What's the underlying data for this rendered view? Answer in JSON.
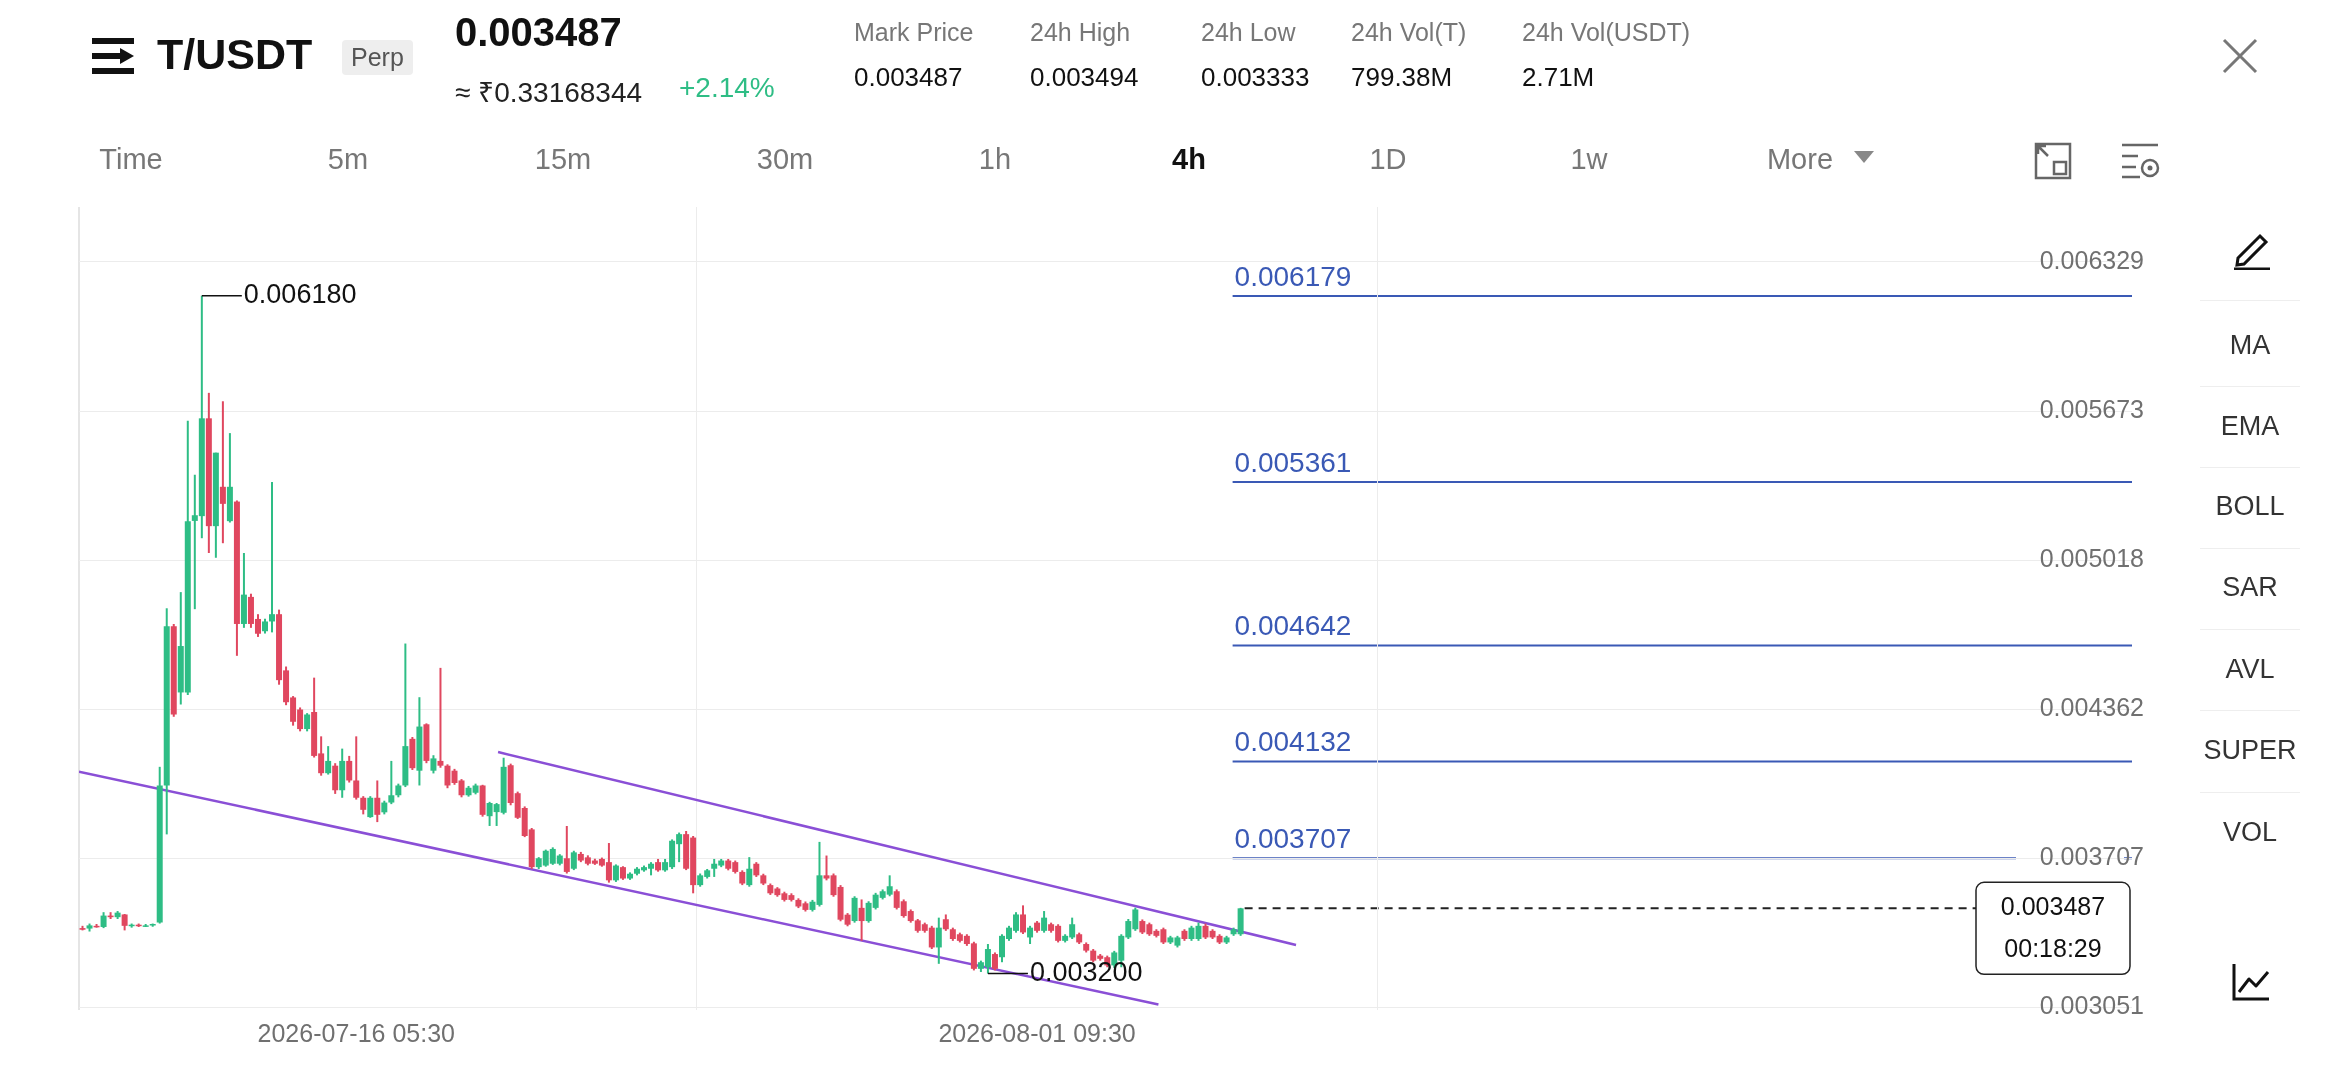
{
  "chart_data": {
    "type": "candlestick",
    "title": "T/USDT",
    "subtitle": "0.003487",
    "x": [
      "2026-07-09T17:30",
      "2026-07-09T21:30",
      "2026-07-10T01:30",
      "2026-07-10T05:30",
      "2026-07-10T09:30",
      "2026-07-10T13:30",
      "2026-07-10T17:30",
      "2026-07-10T21:30",
      "2026-07-11T01:30",
      "2026-07-11T05:30",
      "2026-07-11T09:30",
      "2026-07-11T13:30",
      "2026-07-11T17:30",
      "2026-07-11T21:30",
      "2026-07-12T01:30",
      "2026-07-12T05:30",
      "2026-07-12T09:30",
      "2026-07-12T13:30",
      "2026-07-12T17:30",
      "2026-07-12T21:30",
      "2026-07-13T01:30",
      "2026-07-13T05:30",
      "2026-07-13T09:30",
      "2026-07-13T13:30",
      "2026-07-13T17:30",
      "2026-07-13T21:30",
      "2026-07-14T01:30",
      "2026-07-14T05:30",
      "2026-07-14T09:30",
      "2026-07-14T13:30",
      "2026-07-14T17:30",
      "2026-07-14T21:30",
      "2026-07-15T01:30",
      "2026-07-15T05:30",
      "2026-07-15T09:30",
      "2026-07-15T13:30",
      "2026-07-15T17:30",
      "2026-07-15T21:30",
      "2026-07-16T01:30",
      "2026-07-16T05:30",
      "2026-07-16T09:30",
      "2026-07-16T13:30",
      "2026-07-16T17:30",
      "2026-07-16T21:30",
      "2026-07-17T01:30",
      "2026-07-17T05:30",
      "2026-07-17T09:30",
      "2026-07-17T13:30",
      "2026-07-17T17:30",
      "2026-07-17T21:30",
      "2026-07-18T01:30",
      "2026-07-18T05:30",
      "2026-07-18T09:30",
      "2026-07-18T13:30",
      "2026-07-18T17:30",
      "2026-07-18T21:30",
      "2026-07-19T01:30",
      "2026-07-19T05:30",
      "2026-07-19T09:30",
      "2026-07-19T13:30",
      "2026-07-19T17:30",
      "2026-07-19T21:30",
      "2026-07-20T01:30",
      "2026-07-20T05:30",
      "2026-07-20T09:30",
      "2026-07-20T13:30",
      "2026-07-20T17:30",
      "2026-07-20T21:30",
      "2026-07-21T01:30",
      "2026-07-21T05:30",
      "2026-07-21T09:30",
      "2026-07-21T13:30",
      "2026-07-21T17:30",
      "2026-07-21T21:30",
      "2026-07-22T01:30",
      "2026-07-22T05:30",
      "2026-07-22T09:30",
      "2026-07-22T13:30",
      "2026-07-22T17:30",
      "2026-07-22T21:30",
      "2026-07-23T01:30",
      "2026-07-23T05:30",
      "2026-07-23T09:30",
      "2026-07-23T13:30",
      "2026-07-23T17:30",
      "2026-07-23T21:30",
      "2026-07-24T01:30",
      "2026-07-24T05:30",
      "2026-07-24T09:30",
      "2026-07-24T13:30",
      "2026-07-24T17:30",
      "2026-07-24T21:30",
      "2026-07-25T01:30",
      "2026-07-25T05:30",
      "2026-07-25T09:30",
      "2026-07-25T13:30",
      "2026-07-25T17:30",
      "2026-07-25T21:30",
      "2026-07-26T01:30",
      "2026-07-26T05:30",
      "2026-07-26T09:30",
      "2026-07-26T13:30",
      "2026-07-26T17:30",
      "2026-07-26T21:30",
      "2026-07-27T01:30",
      "2026-07-27T05:30",
      "2026-07-27T09:30",
      "2026-07-27T13:30",
      "2026-07-27T17:30",
      "2026-07-27T21:30",
      "2026-07-28T01:30",
      "2026-07-28T05:30",
      "2026-07-28T09:30",
      "2026-07-28T13:30",
      "2026-07-28T17:30",
      "2026-07-28T21:30",
      "2026-07-29T01:30",
      "2026-07-29T05:30",
      "2026-07-29T09:30",
      "2026-07-29T13:30",
      "2026-07-29T17:30",
      "2026-07-29T21:30",
      "2026-07-30T01:30",
      "2026-07-30T05:30",
      "2026-07-30T09:30",
      "2026-07-30T13:30",
      "2026-07-30T17:30",
      "2026-07-30T21:30",
      "2026-07-31T01:30",
      "2026-07-31T05:30",
      "2026-07-31T09:30",
      "2026-07-31T13:30",
      "2026-07-31T17:30",
      "2026-07-31T21:30",
      "2026-08-01T01:30",
      "2026-08-01T05:30",
      "2026-08-01T09:30",
      "2026-08-01T13:30",
      "2026-08-01T17:30",
      "2026-08-01T21:30",
      "2026-08-02T01:30",
      "2026-08-02T05:30",
      "2026-08-02T09:30",
      "2026-08-02T13:30",
      "2026-08-02T17:30",
      "2026-08-02T21:30",
      "2026-08-03T01:30",
      "2026-08-03T05:30",
      "2026-08-03T09:30",
      "2026-08-03T13:30",
      "2026-08-03T17:30",
      "2026-08-03T21:30",
      "2026-08-04T01:30",
      "2026-08-04T05:30",
      "2026-08-04T09:30",
      "2026-08-04T13:30",
      "2026-08-04T17:30",
      "2026-08-04T21:30",
      "2026-08-05T01:30",
      "2026-08-05T05:30",
      "2026-08-05T09:30",
      "2026-08-05T13:30",
      "2026-08-05T17:30",
      "2026-08-05T21:30",
      "2026-08-06T01:30",
      "2026-08-06T05:30"
    ],
    "ohlc": [
      [
        0.0034,
        0.00341,
        0.00339,
        0.003393
      ],
      [
        0.003398,
        0.00342,
        0.003385,
        0.003412
      ],
      [
        0.00341,
        0.003418,
        0.003402,
        0.003405
      ],
      [
        0.003405,
        0.00347,
        0.0034,
        0.003455
      ],
      [
        0.003455,
        0.00347,
        0.00344,
        0.003448
      ],
      [
        0.003448,
        0.003475,
        0.00344,
        0.003468
      ],
      [
        0.00346,
        0.003462,
        0.00339,
        0.00341
      ],
      [
        0.00341,
        0.00342,
        0.003402,
        0.003415
      ],
      [
        0.003415,
        0.00342,
        0.003405,
        0.00341
      ],
      [
        0.00341,
        0.003418,
        0.003405,
        0.003412
      ],
      [
        0.003412,
        0.00342,
        0.003406,
        0.003418
      ],
      [
        0.003425,
        0.004109,
        0.00342,
        0.004027
      ],
      [
        0.004027,
        0.004806,
        0.003812,
        0.004727
      ],
      [
        0.004727,
        0.004737,
        0.004329,
        0.004339
      ],
      [
        0.004436,
        0.004877,
        0.004383,
        0.00464
      ],
      [
        0.004436,
        0.00563,
        0.004425,
        0.005189
      ],
      [
        0.00519,
        0.005393,
        0.004802,
        0.005215
      ],
      [
        0.005211,
        0.00618,
        0.005114,
        0.005641
      ],
      [
        0.005641,
        0.005753,
        0.005049,
        0.005167
      ],
      [
        0.005167,
        0.00549,
        0.005028,
        0.00549
      ],
      [
        0.00534,
        0.005716,
        0.005092,
        0.005265
      ],
      [
        0.005189,
        0.005576,
        0.005183,
        0.00534
      ],
      [
        0.005275,
        0.00528,
        0.004597,
        0.004737
      ],
      [
        0.004737,
        0.005049,
        0.00472,
        0.004866
      ],
      [
        0.004856,
        0.00487,
        0.00472,
        0.004737
      ],
      [
        0.004759,
        0.00478,
        0.00468,
        0.004694
      ],
      [
        0.004705,
        0.00476,
        0.004695,
        0.004748
      ],
      [
        0.004748,
        0.005361,
        0.0047,
        0.00478
      ],
      [
        0.00478,
        0.0048,
        0.00447,
        0.00449
      ],
      [
        0.004533,
        0.00455,
        0.00438,
        0.004393
      ],
      [
        0.004414,
        0.00442,
        0.00429,
        0.004307
      ],
      [
        0.004361,
        0.00437,
        0.004265,
        0.004275
      ],
      [
        0.004275,
        0.004345,
        0.004265,
        0.004339
      ],
      [
        0.00435,
        0.004501,
        0.00415,
        0.004157
      ],
      [
        0.004168,
        0.004243,
        0.00407,
        0.004081
      ],
      [
        0.004081,
        0.0042,
        0.004075,
        0.004135
      ],
      [
        0.004114,
        0.004125,
        0.00399,
        0.004006
      ],
      [
        0.004006,
        0.004189,
        0.003973,
        0.004135
      ],
      [
        0.004135,
        0.004157,
        0.00404,
        0.004049
      ],
      [
        0.004049,
        0.004243,
        0.003965,
        0.003973
      ],
      [
        0.003973,
        0.00398,
        0.0039,
        0.00392
      ],
      [
        0.003888,
        0.00398,
        0.003885,
        0.003973
      ],
      [
        0.003973,
        0.004049,
        0.003866,
        0.003898
      ],
      [
        0.003909,
        0.00396,
        0.0039,
        0.003952
      ],
      [
        0.003952,
        0.004135,
        0.003945,
        0.003984
      ],
      [
        0.003984,
        0.004035,
        0.003975,
        0.004027
      ],
      [
        0.004027,
        0.004651,
        0.00402,
        0.0042
      ],
      [
        0.004232,
        0.00424,
        0.004095,
        0.004103
      ],
      [
        0.004092,
        0.004415,
        0.004027,
        0.004286
      ],
      [
        0.004296,
        0.0043,
        0.004125,
        0.004135
      ],
      [
        0.004092,
        0.00416,
        0.00408,
        0.004146
      ],
      [
        0.004135,
        0.004544,
        0.004105,
        0.004114
      ],
      [
        0.004114,
        0.00412,
        0.004015,
        0.004027
      ],
      [
        0.004092,
        0.0041,
        0.00403,
        0.004038
      ],
      [
        0.004049,
        0.004055,
        0.003975,
        0.003984
      ],
      [
        0.003984,
        0.004025,
        0.003978,
        0.004017
      ],
      [
        0.003995,
        0.004035,
        0.003988,
        0.004027
      ],
      [
        0.004027,
        0.00403,
        0.00389,
        0.003898
      ],
      [
        0.003892,
        0.003955,
        0.003849,
        0.00395
      ],
      [
        0.00391,
        0.00395,
        0.003849,
        0.003945
      ],
      [
        0.003907,
        0.004149,
        0.0039,
        0.004109
      ],
      [
        0.004116,
        0.004123,
        0.00394,
        0.00395
      ],
      [
        0.003993,
        0.004,
        0.00388,
        0.003885
      ],
      [
        0.003928,
        0.003935,
        0.0038,
        0.003805
      ],
      [
        0.003834,
        0.00384,
        0.00366,
        0.003668
      ],
      [
        0.003668,
        0.003712,
        0.00366,
        0.003707
      ],
      [
        0.003675,
        0.003745,
        0.00367,
        0.00374
      ],
      [
        0.003683,
        0.003755,
        0.003678,
        0.003748
      ],
      [
        0.003683,
        0.003725,
        0.003676,
        0.003719
      ],
      [
        0.003707,
        0.003849,
        0.00364,
        0.003647
      ],
      [
        0.003661,
        0.00374,
        0.003655,
        0.003733
      ],
      [
        0.003726,
        0.003735,
        0.00369,
        0.003697
      ],
      [
        0.003711,
        0.00372,
        0.003676,
        0.003683
      ],
      [
        0.003697,
        0.003705,
        0.003678,
        0.003683
      ],
      [
        0.003704,
        0.00371,
        0.00367,
        0.003675
      ],
      [
        0.00369,
        0.003774,
        0.0036,
        0.00361
      ],
      [
        0.00361,
        0.00368,
        0.003603,
        0.003675
      ],
      [
        0.003668,
        0.003672,
        0.003612,
        0.003618
      ],
      [
        0.003618,
        0.003645,
        0.003612,
        0.003639
      ],
      [
        0.003639,
        0.003668,
        0.003632,
        0.003661
      ],
      [
        0.003654,
        0.003675,
        0.003648,
        0.003668
      ],
      [
        0.003661,
        0.00369,
        0.003632,
        0.003683
      ],
      [
        0.00369,
        0.003704,
        0.003648,
        0.003654
      ],
      [
        0.003654,
        0.003704,
        0.003648,
        0.00369
      ],
      [
        0.003668,
        0.00379,
        0.00366,
        0.003784
      ],
      [
        0.003769,
        0.00382,
        0.00369,
        0.003813
      ],
      [
        0.003813,
        0.003827,
        0.003655,
        0.003661
      ],
      [
        0.003798,
        0.003805,
        0.003553,
        0.003589
      ],
      [
        0.003589,
        0.00364,
        0.003582,
        0.003632
      ],
      [
        0.003625,
        0.00366,
        0.003618,
        0.003654
      ],
      [
        0.003661,
        0.003704,
        0.003625,
        0.003683
      ],
      [
        0.003675,
        0.003704,
        0.003668,
        0.003697
      ],
      [
        0.003697,
        0.003704,
        0.003654,
        0.003661
      ],
      [
        0.00369,
        0.003697,
        0.00364,
        0.003647
      ],
      [
        0.003647,
        0.003654,
        0.003589,
        0.003596
      ],
      [
        0.003589,
        0.003712,
        0.003582,
        0.003661
      ],
      [
        0.003683,
        0.00369,
        0.003625,
        0.003632
      ],
      [
        0.003632,
        0.003639,
        0.003589,
        0.003596
      ],
      [
        0.003589,
        0.003596,
        0.003546,
        0.003553
      ],
      [
        0.003574,
        0.00358,
        0.003538,
        0.003545
      ],
      [
        0.003553,
        0.00356,
        0.003517,
        0.003524
      ],
      [
        0.003545,
        0.003553,
        0.003517,
        0.003524
      ],
      [
        0.003524,
        0.003531,
        0.003488,
        0.003495
      ],
      [
        0.003509,
        0.003517,
        0.003473,
        0.00348
      ],
      [
        0.00348,
        0.003524,
        0.003473,
        0.003516
      ],
      [
        0.003502,
        0.003779,
        0.003495,
        0.003632
      ],
      [
        0.003632,
        0.003719,
        0.00361,
        0.003618
      ],
      [
        0.003632,
        0.00364,
        0.003538,
        0.003545
      ],
      [
        0.003581,
        0.003589,
        0.00343,
        0.003437
      ],
      [
        0.003459,
        0.003466,
        0.003408,
        0.003415
      ],
      [
        0.003431,
        0.00354,
        0.003424,
        0.003533
      ],
      [
        0.003489,
        0.003526,
        0.003344,
        0.003431
      ],
      [
        0.003431,
        0.003518,
        0.003424,
        0.003511
      ],
      [
        0.003489,
        0.003555,
        0.003482,
        0.003547
      ],
      [
        0.003533,
        0.00357,
        0.003526,
        0.003562
      ],
      [
        0.003547,
        0.003632,
        0.00354,
        0.003584
      ],
      [
        0.003562,
        0.00357,
        0.003482,
        0.003489
      ],
      [
        0.003518,
        0.003526,
        0.003446,
        0.003453
      ],
      [
        0.003475,
        0.003482,
        0.003424,
        0.003431
      ],
      [
        0.003434,
        0.00344,
        0.00338,
        0.003388
      ],
      [
        0.003417,
        0.003424,
        0.00338,
        0.003388
      ],
      [
        0.003402,
        0.00341,
        0.003308,
        0.003315
      ],
      [
        0.003315,
        0.003446,
        0.003243,
        0.003402
      ],
      [
        0.003439,
        0.00346,
        0.003388,
        0.003395
      ],
      [
        0.003395,
        0.003402,
        0.003344,
        0.003352
      ],
      [
        0.003373,
        0.00338,
        0.003337,
        0.003344
      ],
      [
        0.003366,
        0.003373,
        0.003322,
        0.00333
      ],
      [
        0.003333,
        0.00334,
        0.003214,
        0.003221
      ],
      [
        0.003221,
        0.003257,
        0.003207,
        0.00325
      ],
      [
        0.003228,
        0.00333,
        0.0032,
        0.003308
      ],
      [
        0.003286,
        0.003293,
        0.003214,
        0.003221
      ],
      [
        0.003272,
        0.003373,
        0.00325,
        0.003366
      ],
      [
        0.003352,
        0.00341,
        0.003344,
        0.003402
      ],
      [
        0.003388,
        0.00347,
        0.00338,
        0.00346
      ],
      [
        0.00346,
        0.0035,
        0.003374,
        0.003381
      ],
      [
        0.003359,
        0.00341,
        0.00333,
        0.003402
      ],
      [
        0.003424,
        0.003431,
        0.00338,
        0.003388
      ],
      [
        0.003388,
        0.003475,
        0.00338,
        0.003446
      ],
      [
        0.003417,
        0.003424,
        0.00338,
        0.003388
      ],
      [
        0.00341,
        0.003417,
        0.003337,
        0.003344
      ],
      [
        0.003344,
        0.003373,
        0.003337,
        0.003366
      ],
      [
        0.003359,
        0.003446,
        0.003352,
        0.003417
      ],
      [
        0.003373,
        0.00338,
        0.00333,
        0.003337
      ],
      [
        0.00333,
        0.003337,
        0.003293,
        0.003301
      ],
      [
        0.003301,
        0.003308,
        0.00325,
        0.003257
      ],
      [
        0.003279,
        0.003286,
        0.003257,
        0.003265
      ],
      [
        0.003272,
        0.003279,
        0.003228,
        0.003236
      ],
      [
        0.003236,
        0.0033,
        0.003225,
        0.003293
      ],
      [
        0.003257,
        0.003373,
        0.003228,
        0.003366
      ],
      [
        0.003359,
        0.00344,
        0.003352,
        0.003431
      ],
      [
        0.003395,
        0.00349,
        0.003388,
        0.003482
      ],
      [
        0.003431,
        0.003438,
        0.003374,
        0.003381
      ],
      [
        0.003417,
        0.003424,
        0.003366,
        0.003373
      ],
      [
        0.003388,
        0.003395,
        0.003359,
        0.003366
      ],
      [
        0.003395,
        0.003402,
        0.00333,
        0.003337
      ],
      [
        0.003337,
        0.003366,
        0.00333,
        0.003359
      ],
      [
        0.003323,
        0.003366,
        0.003315,
        0.003359
      ],
      [
        0.003388,
        0.003395,
        0.003344,
        0.003352
      ],
      [
        0.003352,
        0.00341,
        0.003344,
        0.003402
      ],
      [
        0.003352,
        0.003424,
        0.003344,
        0.00341
      ],
      [
        0.00341,
        0.00342,
        0.003352,
        0.003359
      ],
      [
        0.003388,
        0.003395,
        0.003352,
        0.003359
      ],
      [
        0.003366,
        0.003373,
        0.00333,
        0.003337
      ],
      [
        0.003337,
        0.003366,
        0.00333,
        0.003359
      ],
      [
        0.003373,
        0.003402,
        0.003366,
        0.003395
      ],
      [
        0.003373,
        0.003489,
        0.003366,
        0.003487
      ]
    ],
    "series": [
      {
        "type": "line",
        "color": "#8a4fd6",
        "x": [
          "2026-07-19T14:20",
          "2026-08-07T13:05"
        ],
        "values": [
          0.004174,
          0.003326
        ]
      },
      {
        "type": "line",
        "color": "#8a4fd6",
        "x": [
          "2026-07-09T15:30",
          "2026-08-04T06:40"
        ],
        "values": [
          0.004088,
          0.003064
        ]
      }
    ],
    "xlim": [
      "2026-07-09T15:30",
      "2026-08-27T09:30"
    ],
    "xticks": [
      {
        "value": "2026-07-16T05:30",
        "label": "2026-07-16 05:30"
      },
      {
        "value": "2026-08-01T09:30",
        "label": "2026-08-01 09:30"
      }
    ],
    "ylim": [
      0.00304,
      0.00657
    ],
    "yticks": [
      0.003051,
      0.003707,
      0.004362,
      0.005018,
      0.005673,
      0.006329
    ],
    "grid": true,
    "legend": false,
    "ref_lines": [
      {
        "axis": "y",
        "value": 0.006179,
        "label": "0.006179",
        "color": "#3a59b5"
      },
      {
        "axis": "y",
        "value": 0.005361,
        "label": "0.005361",
        "color": "#3a59b5"
      },
      {
        "axis": "y",
        "value": 0.004642,
        "label": "0.004642",
        "color": "#3a59b5"
      },
      {
        "axis": "y",
        "value": 0.004132,
        "label": "0.004132",
        "color": "#3a59b5"
      },
      {
        "axis": "y",
        "value": 0.003707,
        "label": "0.003707",
        "color": "#3a59b5"
      },
      {
        "axis": "y",
        "value": 0.003487,
        "label": "0.003487",
        "color": "#222222",
        "line_style": "dashed"
      }
    ],
    "annotations": [
      "Perp",
      "≈ ₹0.33168344",
      "+2.14%",
      "Mark Price",
      "0.003487",
      "24h High",
      "0.003494",
      "24h Low",
      "0.003333",
      "24h Vol(T)",
      "799.38M",
      "24h Vol(USDT)",
      "2.71M",
      "Time",
      "5m",
      "15m",
      "30m",
      "1h",
      "4h",
      "1D",
      "1w",
      "More",
      "MA",
      "EMA",
      "BOLL",
      "SAR",
      "AVL",
      "SUPER",
      "VOL",
      "00:18:29",
      {
        "text": "0.006180",
        "x": "2026-07-12T13:30",
        "y": 0.00618
      },
      {
        "text": "0.003200",
        "x": "2026-07-31T05:30",
        "y": 0.0032
      }
    ]
  }
}
